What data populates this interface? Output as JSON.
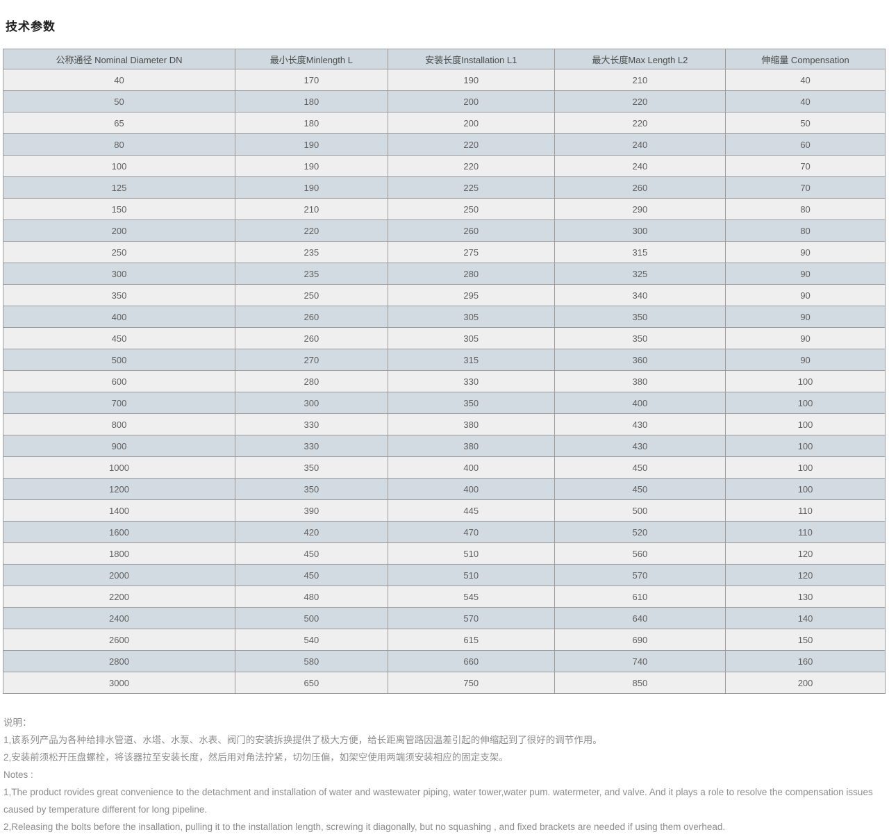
{
  "page": {
    "title": "技术参数"
  },
  "table": {
    "headers": [
      "公称通径 Nominal Diameter DN",
      "最小长度Minlength L",
      "安装长度Installation L1",
      "最大长度Max Length L2",
      "伸缩量 Compensation"
    ],
    "rows": [
      [
        "40",
        "170",
        "190",
        "210",
        "40"
      ],
      [
        "50",
        "180",
        "200",
        "220",
        "40"
      ],
      [
        "65",
        "180",
        "200",
        "220",
        "50"
      ],
      [
        "80",
        "190",
        "220",
        "240",
        "60"
      ],
      [
        "100",
        "190",
        "220",
        "240",
        "70"
      ],
      [
        "125",
        "190",
        "225",
        "260",
        "70"
      ],
      [
        "150",
        "210",
        "250",
        "290",
        "80"
      ],
      [
        "200",
        "220",
        "260",
        "300",
        "80"
      ],
      [
        "250",
        "235",
        "275",
        "315",
        "90"
      ],
      [
        "300",
        "235",
        "280",
        "325",
        "90"
      ],
      [
        "350",
        "250",
        "295",
        "340",
        "90"
      ],
      [
        "400",
        "260",
        "305",
        "350",
        "90"
      ],
      [
        "450",
        "260",
        "305",
        "350",
        "90"
      ],
      [
        "500",
        "270",
        "315",
        "360",
        "90"
      ],
      [
        "600",
        "280",
        "330",
        "380",
        "100"
      ],
      [
        "700",
        "300",
        "350",
        "400",
        "100"
      ],
      [
        "800",
        "330",
        "380",
        "430",
        "100"
      ],
      [
        "900",
        "330",
        "380",
        "430",
        "100"
      ],
      [
        "1000",
        "350",
        "400",
        "450",
        "100"
      ],
      [
        "1200",
        "350",
        "400",
        "450",
        "100"
      ],
      [
        "1400",
        "390",
        "445",
        "500",
        "110"
      ],
      [
        "1600",
        "420",
        "470",
        "520",
        "110"
      ],
      [
        "1800",
        "450",
        "510",
        "560",
        "120"
      ],
      [
        "2000",
        "450",
        "510",
        "570",
        "120"
      ],
      [
        "2200",
        "480",
        "545",
        "610",
        "130"
      ],
      [
        "2400",
        "500",
        "570",
        "640",
        "140"
      ],
      [
        "2600",
        "540",
        "615",
        "690",
        "150"
      ],
      [
        "2800",
        "580",
        "660",
        "740",
        "160"
      ],
      [
        "3000",
        "650",
        "750",
        "850",
        "200"
      ]
    ]
  },
  "notes": {
    "cn_title": "说明：",
    "cn_lines": [
      "1,该系列产品为各种给排水管道、水塔、水泵、水表、阀门的安装拆换提供了极大方便，给长距离管路因温差引起的伸缩起到了很好的调节作用。",
      "2,安装前须松开压盘螺栓，将该器拉至安装长度，然后用对角法拧紧，切勿压偏，如架空使用两端须安装相应的固定支架。"
    ],
    "en_title": "Notes :",
    "en_lines": [
      "1,The product rovides great convenience to the detachment and installation of water and wastewater piping, water tower,water pum. watermeter, and valve. And it plays a role to resolve the compensation issues caused by temperature different for long pipeline.",
      "2,Releasing the bolts before the insallation, pulling it to the installation length, screwing it diagonally, but no squashing , and fixed brackets are needed if using them overhead."
    ]
  },
  "colors": {
    "header_bg": "#cfd9df",
    "row_odd_bg": "#efefef",
    "row_even_bg": "#d3dbe2",
    "border": "#9b9b9b",
    "cell_text": "#5f5f5f",
    "note_text": "#8c8c8c",
    "title_text": "#1f1f1f"
  }
}
